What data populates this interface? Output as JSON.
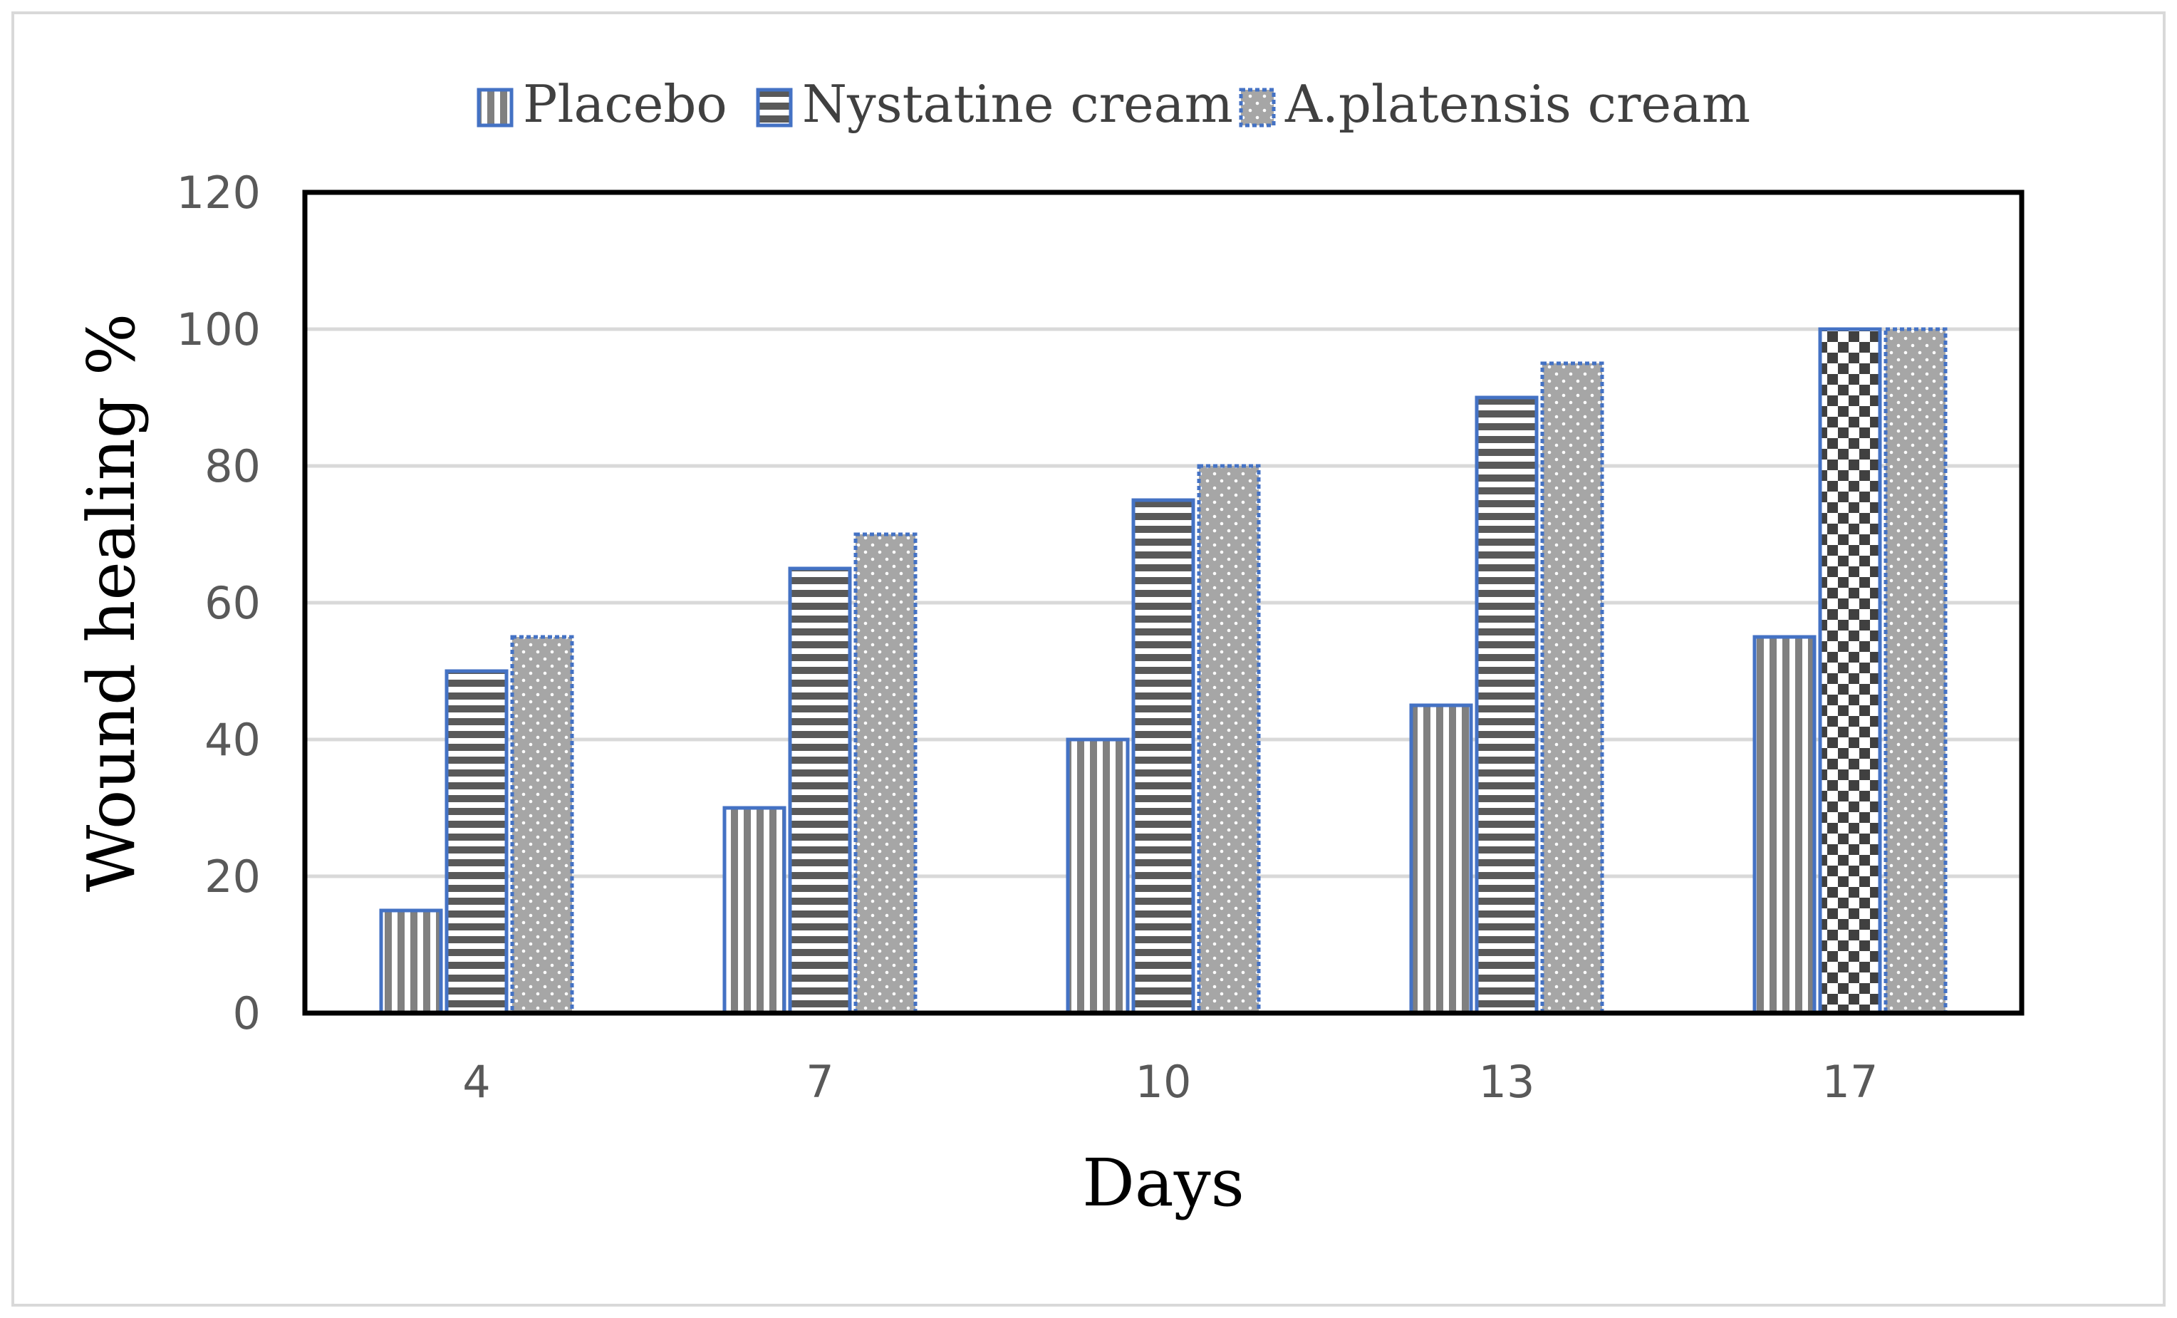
{
  "chart_data": {
    "type": "bar",
    "title": "",
    "xlabel": "Days",
    "ylabel": "Wound healing %",
    "categories": [
      "4",
      "7",
      "10",
      "13",
      "17"
    ],
    "ylim": [
      0,
      120
    ],
    "yticks": [
      0,
      20,
      40,
      60,
      80,
      100,
      120
    ],
    "grid": true,
    "legend_position": "top",
    "series": [
      {
        "name": "Placebo",
        "values": [
          15,
          30,
          40,
          45,
          55
        ],
        "pattern": "vertical-stripes",
        "color": "#808080",
        "border": "#4472C4"
      },
      {
        "name": "Nystatine cream",
        "values": [
          50,
          65,
          75,
          90,
          100
        ],
        "pattern": "horizontal-stripes",
        "color": "#595959",
        "border": "#4472C4"
      },
      {
        "name": "A.platensis cream",
        "values": [
          55,
          70,
          80,
          95,
          100
        ],
        "pattern": "dots",
        "color": "#a6a6a6",
        "border": "#4472C4"
      }
    ],
    "special_fills": [
      {
        "series": 1,
        "category": 4,
        "pattern": "checkerboard"
      }
    ]
  }
}
